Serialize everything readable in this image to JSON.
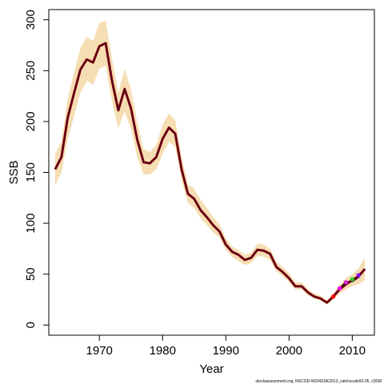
{
  "chart_data": {
    "type": "line",
    "xlabel": "Year",
    "ylabel": "SSB",
    "xlim": [
      1962,
      2013.5
    ],
    "ylim": [
      -10,
      310
    ],
    "xticks": [
      1970,
      1980,
      1990,
      2000,
      2010
    ],
    "yticks": [
      0,
      50,
      100,
      150,
      200,
      250,
      300
    ],
    "grid": false,
    "legend": "none",
    "caption": "stockassessment.org, NSCOD-WGNSSK2013_catchscale93-05, r2038",
    "colors": {
      "band": "#f5deb3",
      "main_line": "#8b0000",
      "main_line_core": "#3a0030",
      "retro_line": "#000000",
      "retro_points": [
        "#ff0000",
        "#ff00ff",
        "#dd22dd",
        "#33cc33",
        "#8800ff"
      ]
    },
    "series": [
      {
        "x": [
          1963,
          1964,
          1965,
          1966,
          1967,
          1968,
          1969,
          1970,
          1971,
          1972,
          1973,
          1974,
          1975,
          1976,
          1977,
          1978,
          1979,
          1980,
          1981,
          1982,
          1983,
          1984,
          1985,
          1986,
          1987,
          1988,
          1989,
          1990,
          1991,
          1992,
          1993,
          1994,
          1995,
          1996,
          1997,
          1998,
          1999,
          2000,
          2001,
          2002,
          2003,
          2004,
          2005,
          2006,
          2007,
          2008,
          2009,
          2010,
          2011,
          2012
        ],
        "values": [
          153,
          165,
          204,
          228,
          251,
          261,
          258,
          274,
          277,
          240,
          211,
          232,
          213,
          182,
          160,
          159,
          165,
          183,
          194,
          188,
          153,
          129,
          124,
          113,
          106,
          98,
          92,
          79,
          72,
          69,
          64,
          66,
          74,
          73,
          70,
          57,
          52,
          46,
          38,
          38,
          32,
          28,
          26,
          22,
          28,
          35,
          40,
          44,
          48,
          55
        ],
        "lower": [
          137,
          150,
          183,
          205,
          228,
          240,
          236,
          252,
          255,
          220,
          193,
          210,
          193,
          165,
          148,
          148,
          153,
          168,
          180,
          175,
          142,
          120,
          115,
          105,
          98,
          91,
          86,
          74,
          67,
          63,
          59,
          61,
          68,
          67,
          64,
          53,
          48,
          42,
          35,
          35,
          29,
          26,
          24,
          20,
          25,
          31,
          35,
          38,
          40,
          44
        ],
        "upper": [
          168,
          180,
          223,
          248,
          272,
          283,
          279,
          297,
          299,
          262,
          228,
          252,
          232,
          199,
          173,
          170,
          177,
          197,
          208,
          201,
          165,
          138,
          134,
          123,
          115,
          106,
          99,
          85,
          77,
          74,
          69,
          71,
          80,
          79,
          75,
          62,
          57,
          51,
          42,
          42,
          35,
          31,
          29,
          24,
          31,
          40,
          46,
          50,
          56,
          66
        ]
      },
      {
        "x": [
          2007,
          2008,
          2009,
          2010,
          2011,
          2012
        ],
        "values": [
          28,
          36,
          42,
          43,
          47,
          55
        ],
        "points_x": [
          2007,
          2008,
          2009,
          2010,
          2011
        ],
        "points_y": [
          28,
          36,
          42,
          45,
          49
        ]
      }
    ]
  }
}
